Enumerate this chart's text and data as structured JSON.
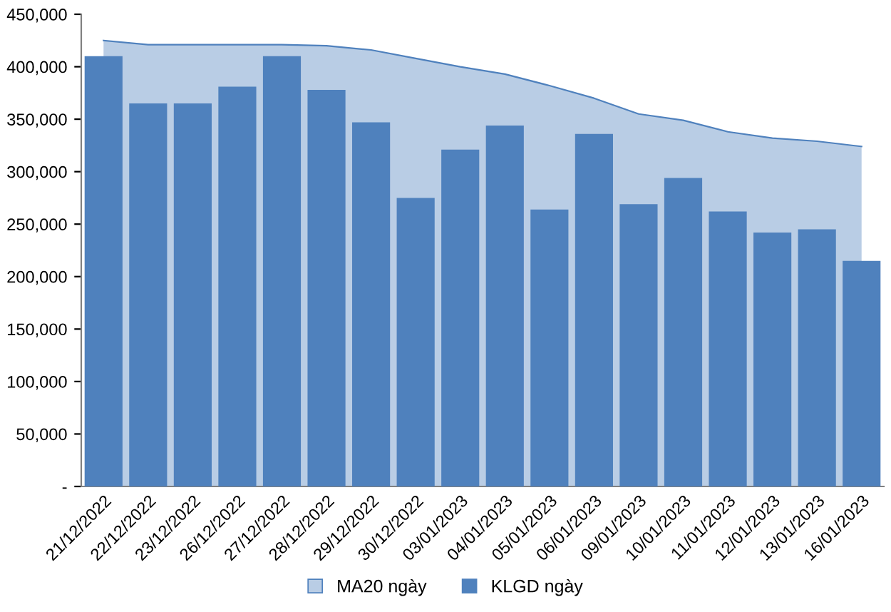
{
  "chart_data": {
    "type": "bar",
    "categories": [
      "21/12/2022",
      "22/12/2022",
      "23/12/2022",
      "26/12/2022",
      "27/12/2022",
      "28/12/2022",
      "29/12/2022",
      "30/12/2022",
      "03/01/2023",
      "04/01/2023",
      "05/01/2023",
      "06/01/2023",
      "09/01/2023",
      "10/01/2023",
      "11/01/2023",
      "12/01/2023",
      "13/01/2023",
      "16/01/2023"
    ],
    "series": [
      {
        "name": "MA20 ngày",
        "type": "area",
        "color": "#b9cde5",
        "values": [
          425000,
          421000,
          421000,
          421000,
          421000,
          420000,
          416000,
          408000,
          400000,
          393000,
          382000,
          370000,
          355000,
          349000,
          338000,
          332000,
          329000,
          324000
        ]
      },
      {
        "name": "KLGD ngày",
        "color": "#4f81bd",
        "values": [
          410000,
          365000,
          365000,
          381000,
          410000,
          378000,
          347000,
          275000,
          321000,
          344000,
          264000,
          336000,
          269000,
          294000,
          262000,
          242000,
          245000,
          215000
        ]
      }
    ],
    "ylim": [
      0,
      450000
    ],
    "yticks": [
      {
        "value": 0,
        "label": "-"
      },
      {
        "value": 50000,
        "label": "50,000"
      },
      {
        "value": 100000,
        "label": "100,000"
      },
      {
        "value": 150000,
        "label": "150,000"
      },
      {
        "value": 200000,
        "label": "200,000"
      },
      {
        "value": 250000,
        "label": "250,000"
      },
      {
        "value": 300000,
        "label": "300,000"
      },
      {
        "value": 350000,
        "label": "350,000"
      },
      {
        "value": 400000,
        "label": "400,000"
      },
      {
        "value": 450000,
        "label": "450,000"
      }
    ],
    "grid": false,
    "legend": "bottom"
  }
}
